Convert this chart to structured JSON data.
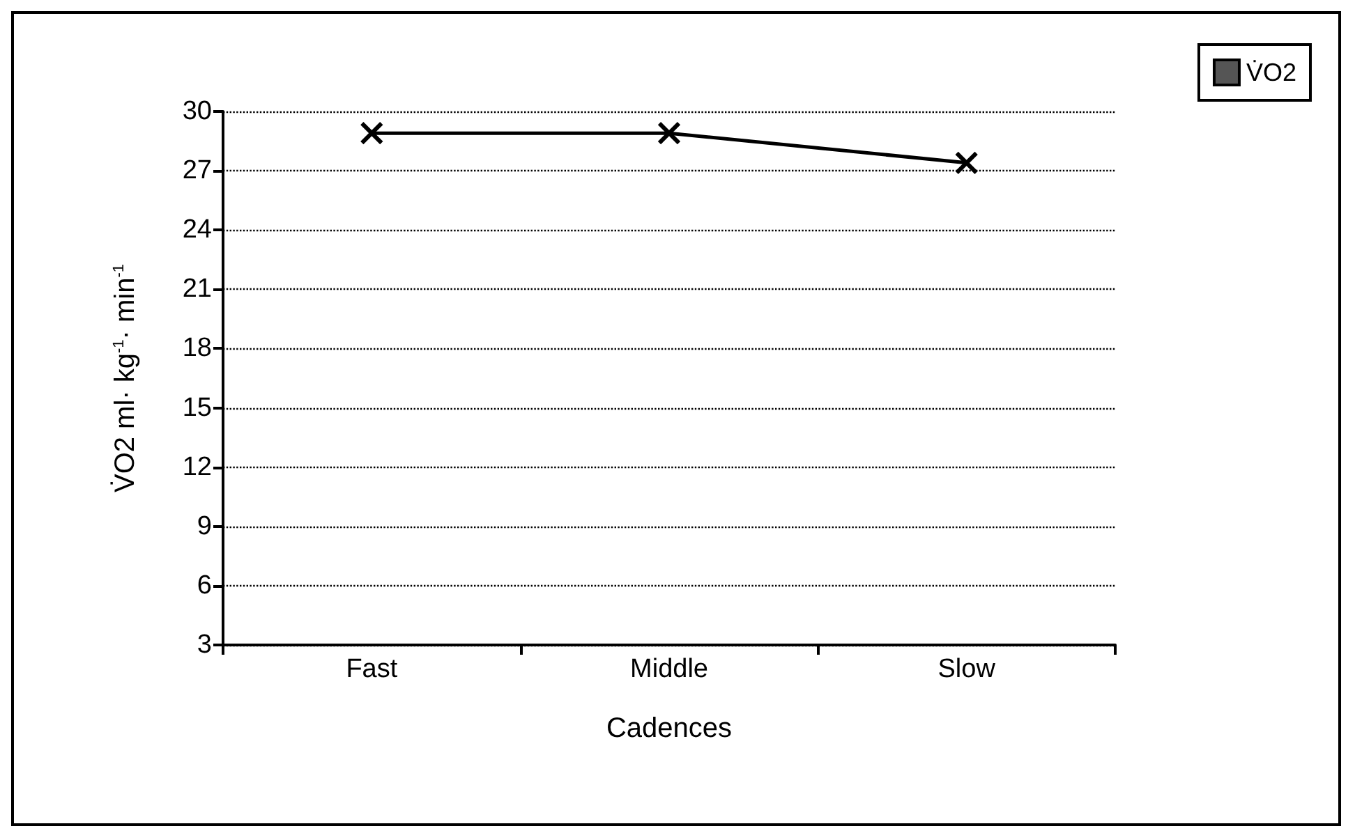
{
  "chart_data": {
    "type": "line",
    "xlabel": "Cadences",
    "ylabel": "V̇O2 ml· kg$^{-1}$· min$^{-1}$",
    "categories": [
      "Fast",
      "Middle",
      "Slow"
    ],
    "series": [
      {
        "name": "V̇O2",
        "color": "#000000",
        "values": [
          28.9,
          28.9,
          27.4
        ]
      }
    ],
    "ylim": [
      3,
      30
    ],
    "yticks": [
      3,
      6,
      9,
      12,
      15,
      18,
      21,
      24,
      27,
      30
    ],
    "grid": "y",
    "legend": "top right",
    "marker": "cross",
    "line_style": "solid"
  }
}
